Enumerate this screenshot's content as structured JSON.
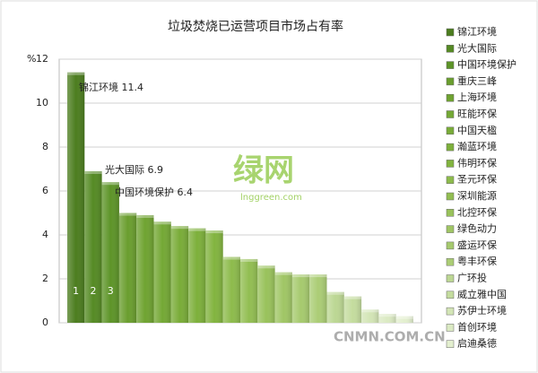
{
  "chart_data": {
    "type": "bar",
    "title": "垃圾焚烧已运营项目市场占有率",
    "ylabel": "%",
    "categories": [
      "锦江环境",
      "光大国际",
      "中国环境保护",
      "重庆三峰",
      "上海环境",
      "旺能环保",
      "中国天楹",
      "瀚蓝环境",
      "伟明环保",
      "圣元环保",
      "深圳能源",
      "北控环保",
      "绿色动力",
      "盛运环保",
      "粤丰环保",
      "广环投",
      "威立雅中国",
      "苏伊士环境",
      "首创环境",
      "启迪桑德"
    ],
    "values": [
      11.4,
      6.9,
      6.4,
      5.0,
      4.9,
      4.6,
      4.4,
      4.3,
      4.2,
      3.0,
      2.9,
      2.6,
      2.3,
      2.2,
      2.2,
      1.4,
      1.2,
      0.6,
      0.4,
      0.3
    ],
    "colors": [
      "#4c7d1f",
      "#558a24",
      "#5d9428",
      "#6a9e2e",
      "#6fa331",
      "#74a835",
      "#79ac38",
      "#7db03b",
      "#82b43f",
      "#8dbb4c",
      "#92be52",
      "#99c25b",
      "#a0c665",
      "#a6ca6e",
      "#abcd75",
      "#bcd793",
      "#c4dc9e",
      "#d3e5b6",
      "#dbeac3",
      "#e3efcf"
    ],
    "ylim": [
      0,
      12
    ],
    "yticks": [
      0,
      2,
      4,
      6,
      8,
      10,
      12
    ],
    "annotations": [
      "锦江环境 11.4",
      "光大国际 6.9",
      "中国环境保护 6.4"
    ],
    "rank_labels": [
      "1",
      "2",
      "3"
    ],
    "watermarks": [
      "绿网",
      "lnggreen.com",
      "CNMN.COM.CN"
    ]
  }
}
